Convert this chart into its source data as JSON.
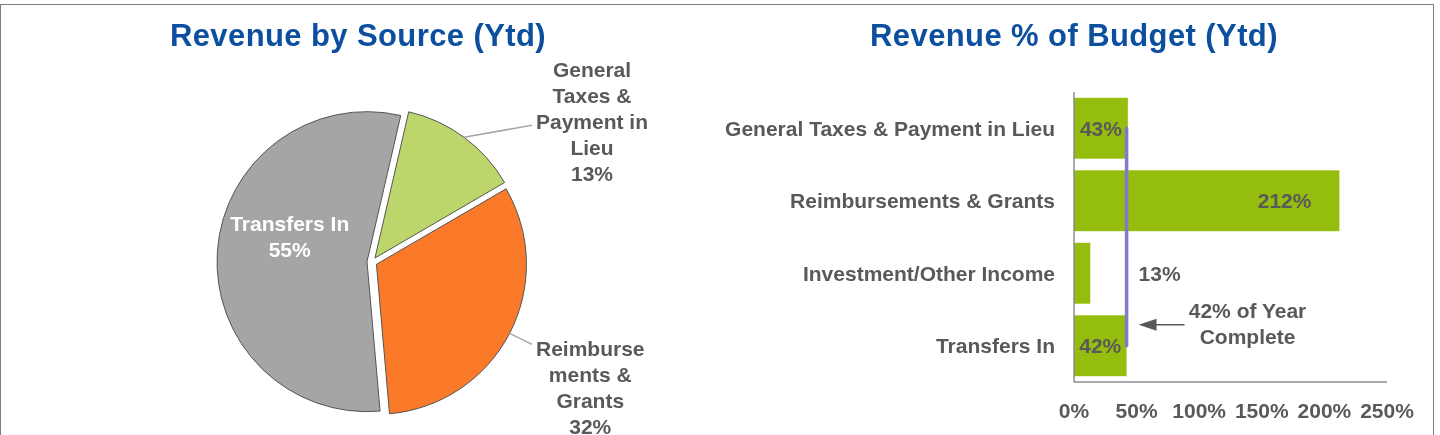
{
  "chart_data": [
    {
      "type": "pie",
      "title": "Revenue by Source (Ytd)",
      "categories": [
        "General Taxes & Payment in Lieu",
        "Reimbursements & Grants",
        "Transfers In"
      ],
      "values": [
        13,
        32,
        55
      ],
      "value_labels": [
        "13%",
        "32%",
        "55%"
      ],
      "colors": [
        "#bdd66b",
        "#fa7a2a",
        "#a5a5a5"
      ]
    },
    {
      "type": "bar",
      "orientation": "horizontal",
      "title": "Revenue % of Budget (Ytd)",
      "categories": [
        "General Taxes & Payment in Lieu",
        "Reimbursements & Grants",
        "Investment/Other Income",
        "Transfers In"
      ],
      "values": [
        43,
        212,
        13,
        42
      ],
      "value_labels": [
        "43%",
        "212%",
        "13%",
        "42%"
      ],
      "color": "#95bd0d",
      "xlim": [
        0,
        250
      ],
      "xticks": [
        {
          "value": 0,
          "label": "0%"
        },
        {
          "value": 50,
          "label": "50%"
        },
        {
          "value": 100,
          "label": "100%"
        },
        {
          "value": 150,
          "label": "150%"
        },
        {
          "value": 200,
          "label": "200%"
        },
        {
          "value": 250,
          "label": "250%"
        }
      ],
      "ref_lines": [
        {
          "axis": "x",
          "value": 42,
          "label": "42% of Year Complete",
          "color": "#8079cc"
        }
      ]
    }
  ]
}
